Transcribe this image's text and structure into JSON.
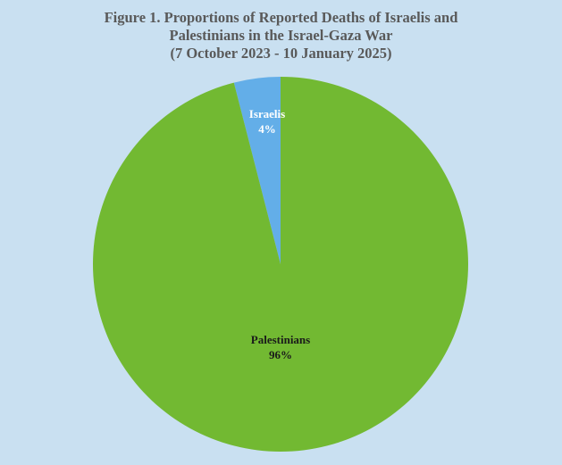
{
  "chart_data": {
    "type": "pie",
    "title": [
      "Figure 1. Proportions of Reported Deaths of Israelis and",
      "Palestinians in the Israel-Gaza War",
      "(7 October 2023 - 10 January 2025)"
    ],
    "categories": [
      "Israelis",
      "Palestinians"
    ],
    "values": [
      4,
      96
    ],
    "value_labels": [
      "4%",
      "96%"
    ],
    "colors": [
      "#63aee8",
      "#72b932"
    ],
    "label_colors": [
      "#ffffff",
      "#1a1a1a"
    ],
    "background": "#c9e0f1",
    "legend": "none"
  }
}
